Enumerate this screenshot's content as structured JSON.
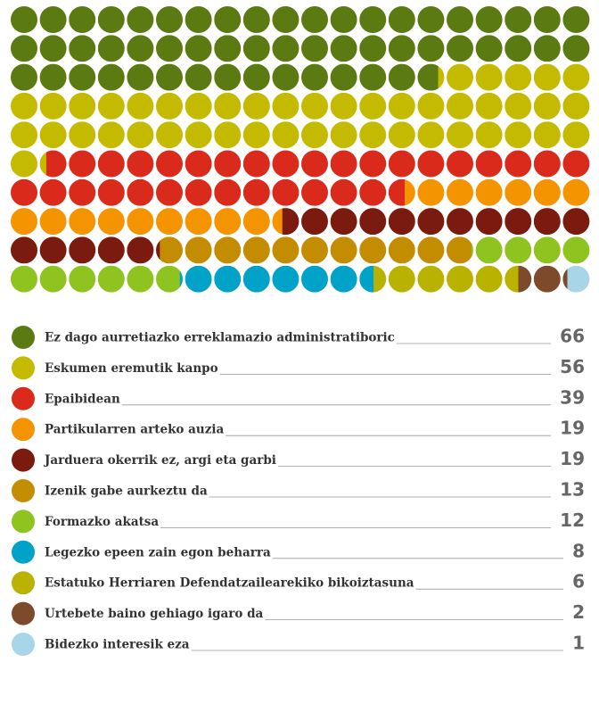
{
  "chart_data": {
    "type": "waffle",
    "rows": 10,
    "columns": 20,
    "series": [
      {
        "name": "Ez dago aurretiazko erreklamazio administratiboric",
        "color": "#5b7a12",
        "values": [
          66
        ]
      },
      {
        "name": "Eskumen eremutik kanpo",
        "color": "#c4ba00",
        "values": [
          56
        ]
      },
      {
        "name": "Epaibidean",
        "color": "#da2a1c",
        "values": [
          39
        ]
      },
      {
        "name": "Partikularren arteko auzia",
        "color": "#f49400",
        "values": [
          19
        ]
      },
      {
        "name": "Jarduera okerrik ez, argi eta garbi",
        "color": "#7b1b0f",
        "values": [
          19
        ]
      },
      {
        "name": "Izenik gabe aurkeztu da",
        "color": "#c48c00",
        "values": [
          13
        ]
      },
      {
        "name": "Formazko akatsa",
        "color": "#8fc320",
        "values": [
          12
        ]
      },
      {
        "name": "Legezko epeen zain egon beharra",
        "color": "#00a2c8",
        "values": [
          8
        ]
      },
      {
        "name": "Estatuko Herriaren Defendatzailearekiko bikoiztasuna",
        "color": "#b9b200",
        "values": [
          6
        ]
      },
      {
        "name": "Urtebete baino gehiago igaro da",
        "color": "#7d4a2c",
        "values": [
          2
        ]
      },
      {
        "name": "Bidezko interesik eza",
        "color": "#a9d5e8",
        "values": [
          1
        ]
      }
    ]
  }
}
